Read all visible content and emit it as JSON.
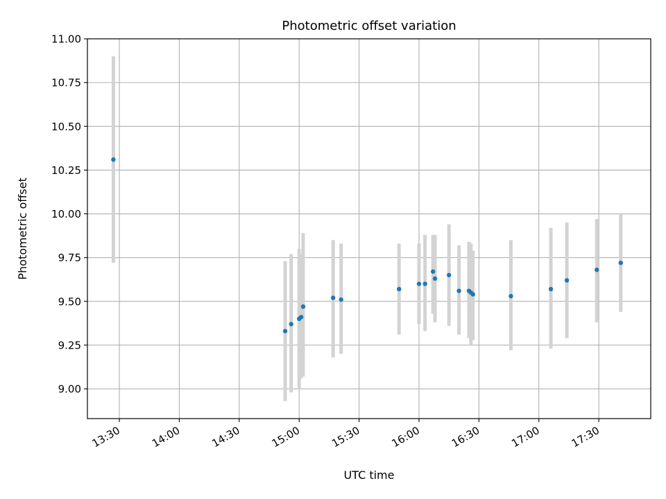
{
  "chart_data": {
    "type": "scatter",
    "title": "Photometric offset variation",
    "xlabel": "UTC time",
    "ylabel": "Photometric offset",
    "xlim": [
      "13:14",
      "17:56"
    ],
    "ylim": [
      8.83,
      11.0
    ],
    "x_ticks": [
      "13:30",
      "14:00",
      "14:30",
      "15:00",
      "15:30",
      "16:00",
      "16:30",
      "17:00",
      "17:30"
    ],
    "y_ticks": [
      9.0,
      9.25,
      9.5,
      9.75,
      10.0,
      10.25,
      10.5,
      10.75,
      11.0
    ],
    "y_tick_labels": [
      "9.00",
      "9.25",
      "9.50",
      "9.75",
      "10.00",
      "10.25",
      "10.50",
      "10.75",
      "11.00"
    ],
    "grid": true,
    "point_color": "#1f77b4",
    "errorbar_color": "#d3d3d3",
    "points": [
      {
        "x": "13:27",
        "y": 10.31,
        "low": 9.72,
        "high": 10.9
      },
      {
        "x": "14:53",
        "y": 9.33,
        "low": 8.93,
        "high": 9.73
      },
      {
        "x": "14:56",
        "y": 9.37,
        "low": 8.98,
        "high": 9.77
      },
      {
        "x": "15:00",
        "y": 9.4,
        "low": 9.0,
        "high": 9.8
      },
      {
        "x": "15:01",
        "y": 9.41,
        "low": 9.06,
        "high": 9.77
      },
      {
        "x": "15:02",
        "y": 9.47,
        "low": 9.07,
        "high": 9.89
      },
      {
        "x": "15:17",
        "y": 9.52,
        "low": 9.18,
        "high": 9.85
      },
      {
        "x": "15:21",
        "y": 9.51,
        "low": 9.2,
        "high": 9.83
      },
      {
        "x": "15:50",
        "y": 9.57,
        "low": 9.31,
        "high": 9.83
      },
      {
        "x": "16:00",
        "y": 9.6,
        "low": 9.37,
        "high": 9.83
      },
      {
        "x": "16:03",
        "y": 9.6,
        "low": 9.33,
        "high": 9.88
      },
      {
        "x": "16:07",
        "y": 9.67,
        "low": 9.43,
        "high": 9.88
      },
      {
        "x": "16:08",
        "y": 9.63,
        "low": 9.38,
        "high": 9.88
      },
      {
        "x": "16:15",
        "y": 9.65,
        "low": 9.36,
        "high": 9.94
      },
      {
        "x": "16:20",
        "y": 9.56,
        "low": 9.31,
        "high": 9.82
      },
      {
        "x": "16:25",
        "y": 9.56,
        "low": 9.29,
        "high": 9.84
      },
      {
        "x": "16:26",
        "y": 9.55,
        "low": 9.25,
        "high": 9.83
      },
      {
        "x": "16:27",
        "y": 9.54,
        "low": 9.28,
        "high": 9.79
      },
      {
        "x": "16:46",
        "y": 9.53,
        "low": 9.22,
        "high": 9.85
      },
      {
        "x": "17:06",
        "y": 9.57,
        "low": 9.23,
        "high": 9.92
      },
      {
        "x": "17:14",
        "y": 9.62,
        "low": 9.29,
        "high": 9.95
      },
      {
        "x": "17:29",
        "y": 9.68,
        "low": 9.38,
        "high": 9.97
      },
      {
        "x": "17:41",
        "y": 9.72,
        "low": 9.44,
        "high": 10.0
      }
    ]
  }
}
